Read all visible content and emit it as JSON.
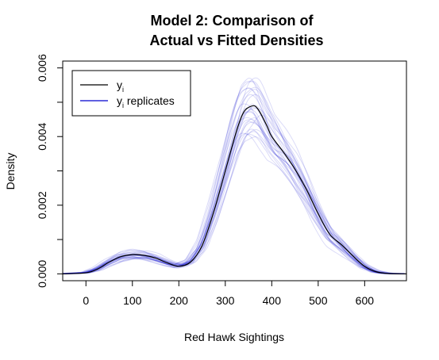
{
  "chart_data": {
    "type": "line",
    "title_line1": "Model 2: Comparison of",
    "title_line2": "Actual vs Fitted Densities",
    "xlabel": "Red Hawk Sightings",
    "ylabel": "Density",
    "xlim": [
      -50,
      690
    ],
    "ylim": [
      -0.0002,
      0.0062
    ],
    "x_ticks": [
      0,
      100,
      200,
      300,
      400,
      500,
      600
    ],
    "x_tick_labels": [
      "0",
      "100",
      "200",
      "300",
      "400",
      "500",
      "600"
    ],
    "y_ticks": [
      0.0,
      0.002,
      0.004,
      0.006
    ],
    "y_tick_labels": [
      "0.000",
      "0.002",
      "0.004",
      "0.006"
    ],
    "legend": {
      "position": "top-left",
      "entries": [
        {
          "label_main": "y",
          "label_sub": "i",
          "label_rest": "",
          "color": "#000000"
        },
        {
          "label_main": "y",
          "label_sub": "i",
          "label_rest": " replicates",
          "color": "#0000cd"
        }
      ]
    },
    "actual": {
      "name": "y_i",
      "color": "#000000",
      "x": [
        -50,
        0,
        25,
        50,
        75,
        100,
        125,
        150,
        175,
        200,
        225,
        250,
        275,
        300,
        325,
        340,
        355,
        365,
        375,
        390,
        400,
        425,
        450,
        475,
        500,
        525,
        550,
        575,
        600,
        625,
        650,
        690
      ],
      "values": [
        0.0,
        3e-05,
        0.00014,
        0.00034,
        0.0005,
        0.00056,
        0.00054,
        0.00046,
        0.00032,
        0.00022,
        0.00034,
        0.00082,
        0.0018,
        0.003,
        0.0042,
        0.00472,
        0.00488,
        0.00488,
        0.0047,
        0.0043,
        0.004,
        0.00355,
        0.00305,
        0.00245,
        0.00175,
        0.00115,
        0.00085,
        0.00052,
        0.00022,
        6e-05,
        1e-05,
        0.0
      ]
    },
    "replicates": {
      "name": "y_i replicates",
      "color": "#0000cd",
      "count": 30
    }
  }
}
